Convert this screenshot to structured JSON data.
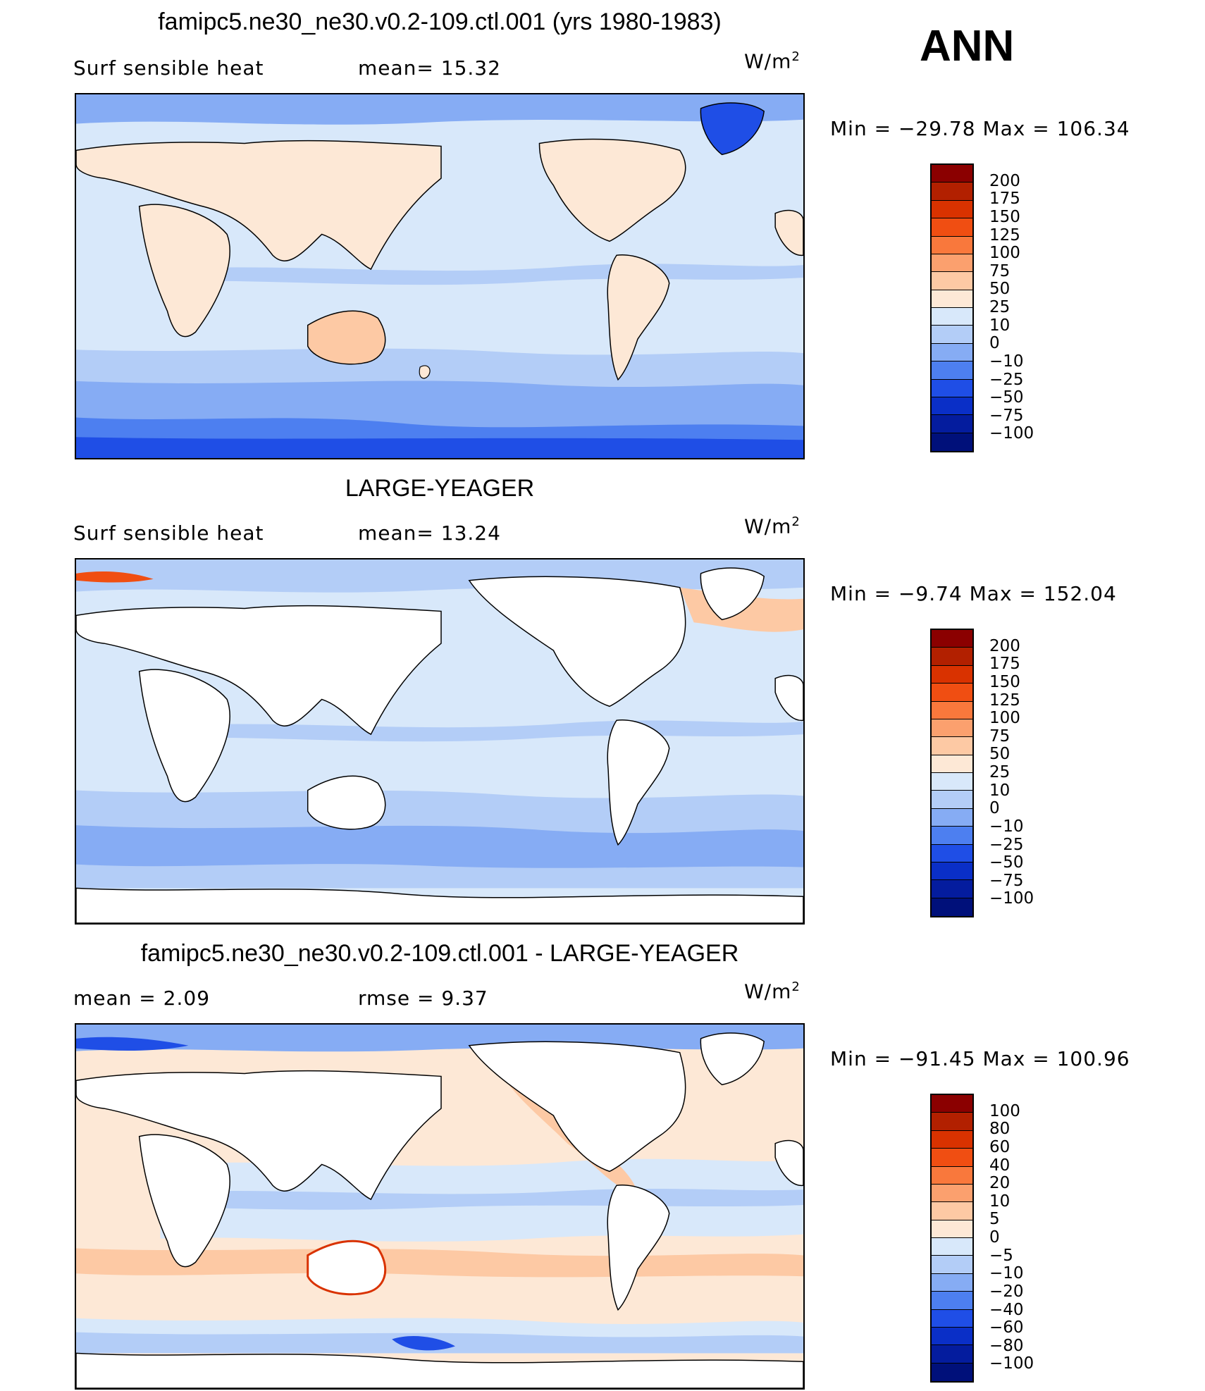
{
  "figure": {
    "season": "ANN",
    "panels": [
      {
        "id": "model",
        "title": "famipc5.ne30_ne30.v0.2-109.ctl.001 (yrs 1980-1983)",
        "variable": "Surf  sensible  heat",
        "stat1": "mean=   15.32",
        "stat2": "",
        "unit_base": "W/m",
        "unit_exp": "2",
        "minmax": "Min  =  −29.78  Max  =  106.34",
        "levels": [
          "200",
          "175",
          "150",
          "125",
          "100",
          "75",
          "50",
          "25",
          "10",
          "0",
          "−10",
          "−25",
          "−50",
          "−75",
          "−100"
        ],
        "colors": [
          "#8b0000",
          "#b22000",
          "#d93200",
          "#f04e12",
          "#f9783c",
          "#fba06e",
          "#fdc9a4",
          "#fde8d6",
          "#d8e8fa",
          "#b3cdf7",
          "#86acf4",
          "#4d7ff0",
          "#1f4ee6",
          "#0a2fc7",
          "#041c9e",
          "#00107a"
        ]
      },
      {
        "id": "obs",
        "title": "LARGE-YEAGER",
        "variable": "Surf  sensible  heat",
        "stat1": "mean=   13.24",
        "stat2": "",
        "unit_base": "W/m",
        "unit_exp": "2",
        "minmax": "Min  =    −9.74  Max  =  152.04",
        "levels": [
          "200",
          "175",
          "150",
          "125",
          "100",
          "75",
          "50",
          "25",
          "10",
          "0",
          "−10",
          "−25",
          "−50",
          "−75",
          "−100"
        ],
        "colors": [
          "#8b0000",
          "#b22000",
          "#d93200",
          "#f04e12",
          "#f9783c",
          "#fba06e",
          "#fdc9a4",
          "#fde8d6",
          "#d8e8fa",
          "#b3cdf7",
          "#86acf4",
          "#4d7ff0",
          "#1f4ee6",
          "#0a2fc7",
          "#041c9e",
          "#00107a"
        ]
      },
      {
        "id": "diff",
        "title": "famipc5.ne30_ne30.v0.2-109.ctl.001 - LARGE-YEAGER",
        "variable": "",
        "stat1": "mean  =     2.09",
        "stat2": "rmse  =     9.37",
        "unit_base": "W/m",
        "unit_exp": "2",
        "minmax": "Min  =  −91.45  Max  =  100.96",
        "levels": [
          "100",
          "80",
          "60",
          "40",
          "20",
          "10",
          "5",
          "0",
          "−5",
          "−10",
          "−20",
          "−40",
          "−60",
          "−80",
          "−100"
        ],
        "colors": [
          "#8b0000",
          "#b22000",
          "#d93200",
          "#f04e12",
          "#f9783c",
          "#fba06e",
          "#fdc9a4",
          "#fde8d6",
          "#d8e8fa",
          "#b3cdf7",
          "#86acf4",
          "#4d7ff0",
          "#1f4ee6",
          "#0a2fc7",
          "#041c9e",
          "#00107a"
        ]
      }
    ]
  }
}
